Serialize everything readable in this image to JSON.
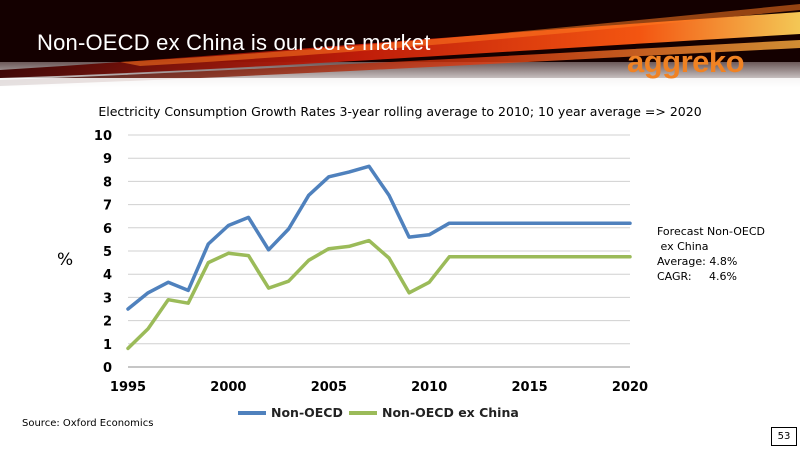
{
  "slide": {
    "title": "Non-OECD ex China is our core market",
    "logo_text": "aggreko",
    "source": "Source: Oxford Economics",
    "page_number": "53"
  },
  "colors": {
    "header_dark": "#1a0000",
    "logo_orange": "#f08223",
    "non_oecd": "#4f81bd",
    "non_oecd_ex_china": "#9bbb59",
    "gridline": "#d0d0d0"
  },
  "annotation": {
    "line1": "Forecast Non-OECD",
    "line2": " ex China",
    "line3": "Average: 4.8%",
    "line4": "CAGR:     4.6%"
  },
  "chart_data": {
    "type": "line",
    "title": "Electricity Consumption Growth Rates 3-year rolling average to 2010; 10 year average => 2020",
    "xlabel": "",
    "ylabel": "%",
    "xlim": [
      1995,
      2020
    ],
    "ylim": [
      0,
      10
    ],
    "x_ticks": [
      1995,
      2000,
      2005,
      2010,
      2015,
      2020
    ],
    "y_ticks": [
      0,
      1,
      2,
      3,
      4,
      5,
      6,
      7,
      8,
      9,
      10
    ],
    "grid": true,
    "legend_position": "bottom",
    "x": [
      1995,
      1996,
      1997,
      1998,
      1999,
      2000,
      2001,
      2002,
      2003,
      2004,
      2005,
      2006,
      2007,
      2008,
      2009,
      2010,
      2011,
      2012,
      2013,
      2014,
      2015,
      2016,
      2017,
      2018,
      2019,
      2020
    ],
    "series": [
      {
        "name": "Non-OECD",
        "values": [
          2.5,
          3.2,
          3.65,
          3.3,
          5.3,
          6.1,
          6.45,
          5.05,
          5.95,
          7.4,
          8.2,
          8.4,
          8.65,
          7.4,
          5.6,
          5.7,
          6.2,
          6.2,
          6.2,
          6.2,
          6.2,
          6.2,
          6.2,
          6.2,
          6.2,
          6.2
        ]
      },
      {
        "name": "Non-OECD ex China",
        "values": [
          0.8,
          1.65,
          2.9,
          2.75,
          4.5,
          4.9,
          4.8,
          3.4,
          3.7,
          4.6,
          5.1,
          5.2,
          5.45,
          4.7,
          3.2,
          3.65,
          4.75,
          4.75,
          4.75,
          4.75,
          4.75,
          4.75,
          4.75,
          4.75,
          4.75,
          4.75
        ]
      }
    ]
  }
}
